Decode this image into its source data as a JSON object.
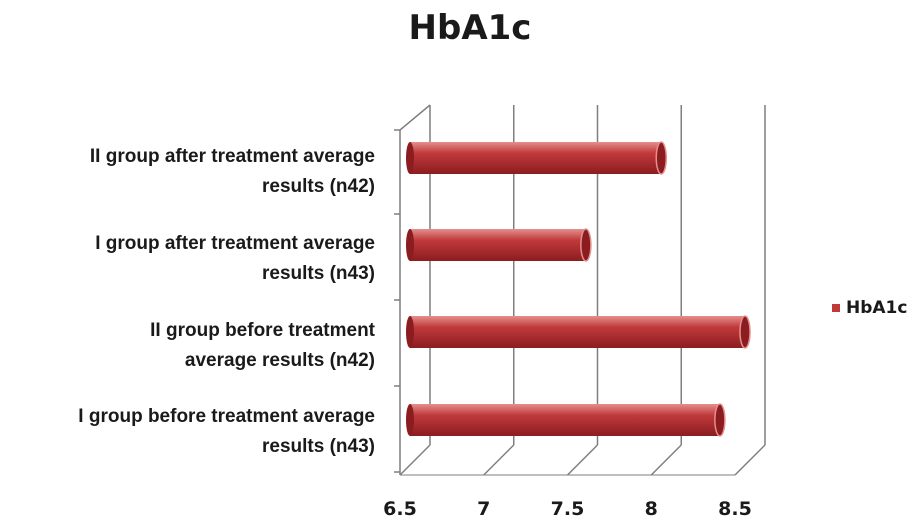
{
  "chart_data": {
    "type": "bar",
    "orientation": "horizontal",
    "three_d": true,
    "title": "HbA1c",
    "categories": [
      "II group after treatment average results (n42)",
      "I group after treatment average results (n43)",
      "II group before treatment average results (n42)",
      "I group before treatment average results (n43)"
    ],
    "category_display": [
      "II group after treatment average\nresults (n42)",
      "I group after treatment average\nresults (n43)",
      "II group before treatment\naverage results (n42)",
      "I group before treatment average\nresults (n43)"
    ],
    "series": [
      {
        "name": "HbA1c",
        "values": [
          8.0,
          7.55,
          8.5,
          8.35
        ]
      }
    ],
    "xlim": [
      6.5,
      8.5
    ],
    "x_ticks": [
      "6.5",
      "7",
      "7.5",
      "8",
      "8.5"
    ],
    "grid": true,
    "legend_position": "right",
    "colors": {
      "bar": "#c0393b",
      "bar_light": "#e58f8c",
      "bar_dark": "#8b1d20",
      "grid": "#7f7f7f"
    }
  }
}
